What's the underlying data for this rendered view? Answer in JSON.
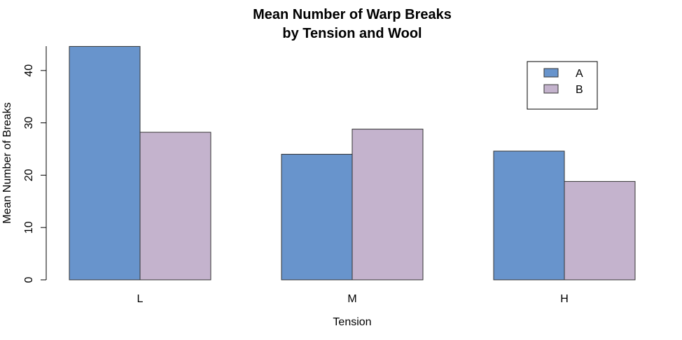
{
  "chart_data": {
    "type": "bar",
    "title_line1": "Mean Number of Warp Breaks",
    "title_line2": "by Tension and Wool",
    "xlabel": "Tension",
    "ylabel": "Mean Number of Breaks",
    "categories": [
      "L",
      "M",
      "H"
    ],
    "series": [
      {
        "name": "A",
        "color": "#6894CC",
        "values": [
          44.6,
          24.0,
          24.6
        ]
      },
      {
        "name": "B",
        "color": "#C4B3CD",
        "values": [
          28.2,
          28.8,
          18.8
        ]
      }
    ],
    "yticks": [
      "0",
      "10",
      "20",
      "30",
      "40"
    ],
    "ylim": [
      0,
      45
    ],
    "grid": false,
    "legend_position": "top-right"
  }
}
